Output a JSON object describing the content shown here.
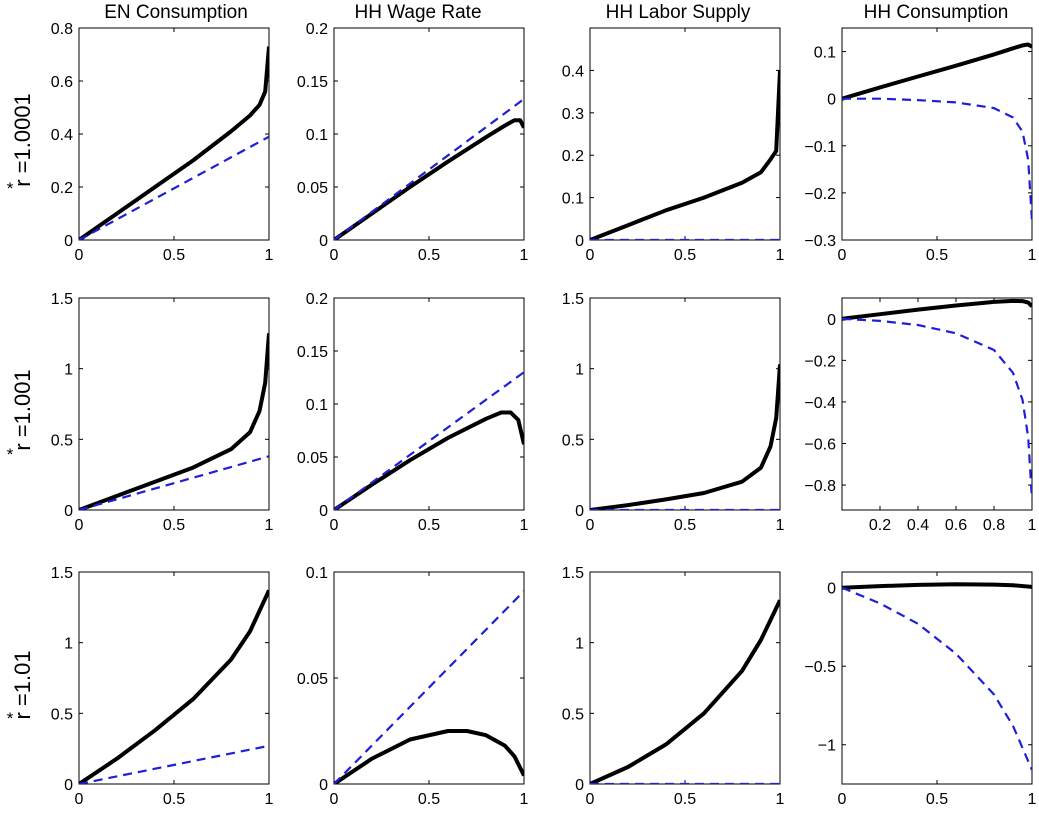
{
  "figure": {
    "column_titles": [
      "EN Consumption",
      "HH Wage Rate",
      "HH Labor Supply",
      "HH Consumption"
    ],
    "row_labels": [
      "r =1.0001",
      "r =1.001",
      "r =1.01"
    ],
    "row_label_superscript": "*"
  },
  "chart_data": [
    {
      "type": "line",
      "row": 0,
      "col": 0,
      "xlim": [
        0,
        1
      ],
      "ylim": [
        0,
        0.8
      ],
      "xticks": [
        0,
        0.5,
        1
      ],
      "xticklabels": [
        "0",
        "0.5",
        "1"
      ],
      "yticks": [
        0,
        0.2,
        0.4,
        0.6,
        0.8
      ],
      "yticklabels": [
        "0",
        "0.2",
        "0.4",
        "0.6",
        "0.8"
      ],
      "series": [
        {
          "style": "solid",
          "color": "#000000",
          "x": [
            0,
            0.2,
            0.4,
            0.6,
            0.8,
            0.9,
            0.95,
            0.98,
            1.0
          ],
          "y": [
            0,
            0.1,
            0.2,
            0.3,
            0.41,
            0.47,
            0.51,
            0.56,
            0.73
          ]
        },
        {
          "style": "dashed",
          "color": "#1f1fd6",
          "x": [
            0,
            1
          ],
          "y": [
            0,
            0.39
          ]
        }
      ]
    },
    {
      "type": "line",
      "row": 0,
      "col": 1,
      "xlim": [
        0,
        1
      ],
      "ylim": [
        0,
        0.2
      ],
      "xticks": [
        0,
        0.5,
        1
      ],
      "xticklabels": [
        "0",
        "0.5",
        "1"
      ],
      "yticks": [
        0,
        0.05,
        0.1,
        0.15,
        0.2
      ],
      "yticklabels": [
        "0",
        "0.05",
        "0.1",
        "0.15",
        "0.2"
      ],
      "series": [
        {
          "style": "solid",
          "color": "#000000",
          "x": [
            0,
            0.2,
            0.4,
            0.6,
            0.8,
            0.9,
            0.95,
            0.98,
            1.0
          ],
          "y": [
            0,
            0.025,
            0.05,
            0.074,
            0.097,
            0.108,
            0.113,
            0.113,
            0.106
          ]
        },
        {
          "style": "dashed",
          "color": "#1f1fd6",
          "x": [
            0,
            1
          ],
          "y": [
            0,
            0.133
          ]
        }
      ]
    },
    {
      "type": "line",
      "row": 0,
      "col": 2,
      "xlim": [
        0,
        1
      ],
      "ylim": [
        0,
        0.5
      ],
      "xticks": [
        0,
        0.5,
        1
      ],
      "xticklabels": [
        "0",
        "0.5",
        "1"
      ],
      "yticks": [
        0,
        0.1,
        0.2,
        0.3,
        0.4
      ],
      "yticklabels": [
        "0",
        "0.1",
        "0.2",
        "0.3",
        "0.4"
      ],
      "series": [
        {
          "style": "solid",
          "color": "#000000",
          "x": [
            0,
            0.2,
            0.4,
            0.6,
            0.8,
            0.9,
            0.95,
            0.98,
            1.0
          ],
          "y": [
            0,
            0.035,
            0.07,
            0.1,
            0.135,
            0.16,
            0.19,
            0.21,
            0.4
          ]
        },
        {
          "style": "dashed",
          "color": "#1f1fd6",
          "x": [
            0,
            1
          ],
          "y": [
            0,
            0
          ]
        }
      ]
    },
    {
      "type": "line",
      "row": 0,
      "col": 3,
      "xlim": [
        0,
        1
      ],
      "ylim": [
        -0.3,
        0.15
      ],
      "xticks": [
        0,
        0.5,
        1
      ],
      "xticklabels": [
        "0",
        "0.5",
        "1"
      ],
      "yticks": [
        -0.3,
        -0.2,
        -0.1,
        0,
        0.1
      ],
      "yticklabels": [
        "−0.3",
        "−0.2",
        "−0.1",
        "0",
        "0.1"
      ],
      "series": [
        {
          "style": "solid",
          "color": "#000000",
          "x": [
            0,
            0.2,
            0.4,
            0.6,
            0.8,
            0.9,
            0.95,
            0.98,
            1.0
          ],
          "y": [
            0,
            0.024,
            0.047,
            0.07,
            0.094,
            0.107,
            0.113,
            0.115,
            0.11
          ]
        },
        {
          "style": "dashed",
          "color": "#1f1fd6",
          "x": [
            0,
            0.2,
            0.4,
            0.6,
            0.8,
            0.9,
            0.95,
            0.98,
            1.0
          ],
          "y": [
            0,
            0,
            -0.003,
            -0.008,
            -0.02,
            -0.04,
            -0.07,
            -0.13,
            -0.26
          ]
        }
      ]
    },
    {
      "type": "line",
      "row": 1,
      "col": 0,
      "xlim": [
        0,
        1
      ],
      "ylim": [
        0,
        1.5
      ],
      "xticks": [
        0,
        0.5,
        1
      ],
      "xticklabels": [
        "0",
        "0.5",
        "1"
      ],
      "yticks": [
        0,
        0.5,
        1,
        1.5
      ],
      "yticklabels": [
        "0",
        "0.5",
        "1",
        "1.5"
      ],
      "series": [
        {
          "style": "solid",
          "color": "#000000",
          "x": [
            0,
            0.2,
            0.4,
            0.6,
            0.8,
            0.9,
            0.95,
            0.98,
            1.0
          ],
          "y": [
            0,
            0.1,
            0.2,
            0.3,
            0.43,
            0.55,
            0.7,
            0.9,
            1.25
          ]
        },
        {
          "style": "dashed",
          "color": "#1f1fd6",
          "x": [
            0,
            1
          ],
          "y": [
            0,
            0.38
          ]
        }
      ]
    },
    {
      "type": "line",
      "row": 1,
      "col": 1,
      "xlim": [
        0,
        1
      ],
      "ylim": [
        0,
        0.2
      ],
      "xticks": [
        0,
        0.5,
        1
      ],
      "xticklabels": [
        "0",
        "0.5",
        "1"
      ],
      "yticks": [
        0,
        0.05,
        0.1,
        0.15,
        0.2
      ],
      "yticklabels": [
        "0",
        "0.05",
        "0.1",
        "0.15",
        "0.2"
      ],
      "series": [
        {
          "style": "solid",
          "color": "#000000",
          "x": [
            0,
            0.2,
            0.4,
            0.6,
            0.8,
            0.88,
            0.93,
            0.97,
            1.0
          ],
          "y": [
            0,
            0.024,
            0.047,
            0.068,
            0.086,
            0.092,
            0.092,
            0.085,
            0.062
          ]
        },
        {
          "style": "dashed",
          "color": "#1f1fd6",
          "x": [
            0,
            1
          ],
          "y": [
            0,
            0.13
          ]
        }
      ]
    },
    {
      "type": "line",
      "row": 1,
      "col": 2,
      "xlim": [
        0,
        1
      ],
      "ylim": [
        0,
        1.5
      ],
      "xticks": [
        0,
        0.5,
        1
      ],
      "xticklabels": [
        "0",
        "0.5",
        "1"
      ],
      "yticks": [
        0,
        0.5,
        1,
        1.5
      ],
      "yticklabels": [
        "0",
        "0.5",
        "1",
        "1.5"
      ],
      "series": [
        {
          "style": "solid",
          "color": "#000000",
          "x": [
            0,
            0.2,
            0.4,
            0.6,
            0.8,
            0.9,
            0.95,
            0.98,
            1.0
          ],
          "y": [
            0,
            0.035,
            0.075,
            0.12,
            0.2,
            0.3,
            0.45,
            0.65,
            1.03
          ]
        },
        {
          "style": "dashed",
          "color": "#1f1fd6",
          "x": [
            0,
            1
          ],
          "y": [
            0,
            0
          ]
        }
      ]
    },
    {
      "type": "line",
      "row": 1,
      "col": 3,
      "xlim": [
        0,
        1
      ],
      "ylim": [
        -0.92,
        0.1
      ],
      "xticks": [
        0.2,
        0.4,
        0.6,
        0.8,
        1
      ],
      "xticklabels": [
        "0.2",
        "0.4",
        "0.6",
        "0.8",
        "1"
      ],
      "yticks": [
        -0.8,
        -0.6,
        -0.4,
        -0.2,
        0
      ],
      "yticklabels": [
        "−0.8",
        "−0.6",
        "−0.4",
        "−0.2",
        "0"
      ],
      "series": [
        {
          "style": "solid",
          "color": "#000000",
          "x": [
            0,
            0.2,
            0.4,
            0.6,
            0.8,
            0.9,
            0.95,
            0.98,
            1.0
          ],
          "y": [
            0,
            0.022,
            0.044,
            0.064,
            0.081,
            0.086,
            0.085,
            0.078,
            0.06
          ]
        },
        {
          "style": "dashed",
          "color": "#1f1fd6",
          "x": [
            0,
            0.2,
            0.4,
            0.6,
            0.8,
            0.9,
            0.95,
            0.98,
            1.0
          ],
          "y": [
            0,
            -0.01,
            -0.03,
            -0.07,
            -0.15,
            -0.26,
            -0.39,
            -0.57,
            -0.87
          ]
        }
      ]
    },
    {
      "type": "line",
      "row": 2,
      "col": 0,
      "xlim": [
        0,
        1
      ],
      "ylim": [
        0,
        1.5
      ],
      "xticks": [
        0,
        0.5,
        1
      ],
      "xticklabels": [
        "0",
        "0.5",
        "1"
      ],
      "yticks": [
        0,
        0.5,
        1,
        1.5
      ],
      "yticklabels": [
        "0",
        "0.5",
        "1",
        "1.5"
      ],
      "series": [
        {
          "style": "solid",
          "color": "#000000",
          "x": [
            0,
            0.2,
            0.4,
            0.6,
            0.8,
            0.9,
            1.0
          ],
          "y": [
            0,
            0.18,
            0.38,
            0.6,
            0.88,
            1.08,
            1.37
          ]
        },
        {
          "style": "dashed",
          "color": "#1f1fd6",
          "x": [
            0,
            1
          ],
          "y": [
            0,
            0.27
          ]
        }
      ]
    },
    {
      "type": "line",
      "row": 2,
      "col": 1,
      "xlim": [
        0,
        1
      ],
      "ylim": [
        0,
        0.1
      ],
      "xticks": [
        0,
        0.5,
        1
      ],
      "xticklabels": [
        "0",
        "0.5",
        "1"
      ],
      "yticks": [
        0,
        0.05,
        0.1
      ],
      "yticklabels": [
        "0",
        "0.05",
        "0.1"
      ],
      "series": [
        {
          "style": "solid",
          "color": "#000000",
          "x": [
            0,
            0.2,
            0.4,
            0.6,
            0.7,
            0.8,
            0.9,
            0.95,
            1.0
          ],
          "y": [
            0,
            0.012,
            0.021,
            0.025,
            0.025,
            0.023,
            0.018,
            0.013,
            0.004
          ]
        },
        {
          "style": "dashed",
          "color": "#1f1fd6",
          "x": [
            0,
            1
          ],
          "y": [
            0,
            0.091
          ]
        }
      ]
    },
    {
      "type": "line",
      "row": 2,
      "col": 2,
      "xlim": [
        0,
        1
      ],
      "ylim": [
        0,
        1.5
      ],
      "xticks": [
        0,
        0.5,
        1
      ],
      "xticklabels": [
        "0",
        "0.5",
        "1"
      ],
      "yticks": [
        0,
        0.5,
        1,
        1.5
      ],
      "yticklabels": [
        "0",
        "0.5",
        "1",
        "1.5"
      ],
      "series": [
        {
          "style": "solid",
          "color": "#000000",
          "x": [
            0,
            0.2,
            0.4,
            0.6,
            0.8,
            0.9,
            1.0
          ],
          "y": [
            0,
            0.12,
            0.28,
            0.5,
            0.8,
            1.02,
            1.3
          ]
        },
        {
          "style": "dashed",
          "color": "#1f1fd6",
          "x": [
            0,
            1
          ],
          "y": [
            0,
            0
          ]
        }
      ]
    },
    {
      "type": "line",
      "row": 2,
      "col": 3,
      "xlim": [
        0,
        1
      ],
      "ylim": [
        -1.25,
        0.1
      ],
      "xticks": [
        0,
        0.5,
        1
      ],
      "xticklabels": [
        "0",
        "0.5",
        "1"
      ],
      "yticks": [
        -1,
        -0.5,
        0
      ],
      "yticklabels": [
        "−1",
        "−0.5",
        "0"
      ],
      "series": [
        {
          "style": "solid",
          "color": "#000000",
          "x": [
            0,
            0.2,
            0.4,
            0.6,
            0.8,
            0.9,
            1.0
          ],
          "y": [
            0,
            0.01,
            0.018,
            0.022,
            0.02,
            0.015,
            0.005
          ]
        },
        {
          "style": "dashed",
          "color": "#1f1fd6",
          "x": [
            0,
            0.2,
            0.4,
            0.6,
            0.8,
            0.9,
            1.0
          ],
          "y": [
            0,
            -0.1,
            -0.23,
            -0.42,
            -0.68,
            -0.88,
            -1.16
          ]
        }
      ]
    }
  ]
}
